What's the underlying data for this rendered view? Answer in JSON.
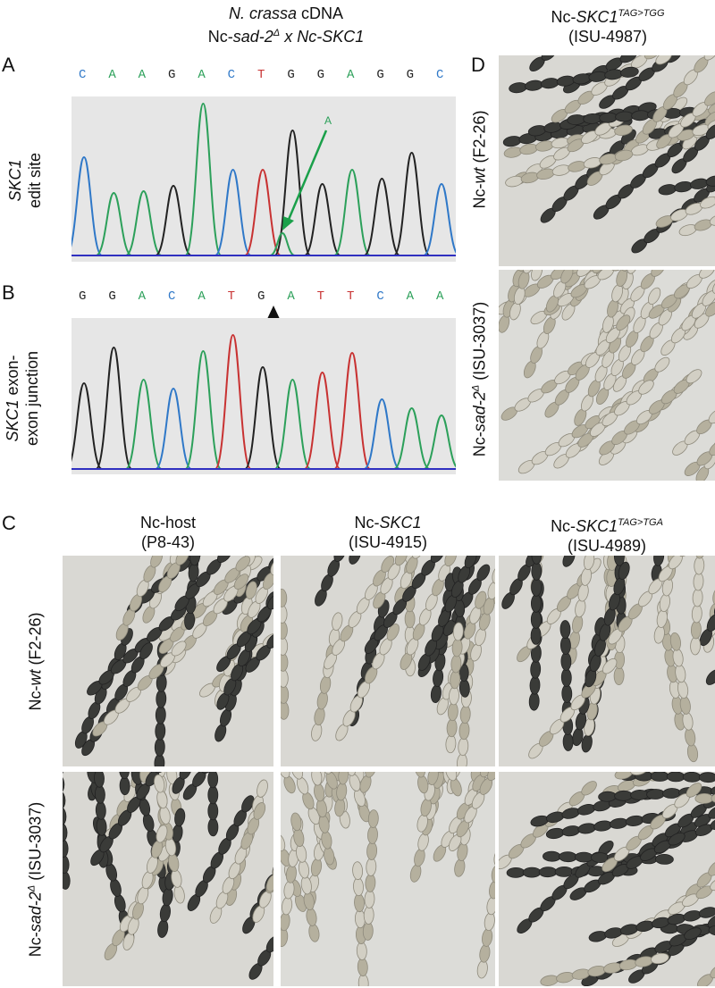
{
  "header": {
    "left_line1_italic": "N. crassa",
    "left_line1_rest": " cDNA",
    "left_line2_a": "Nc-",
    "left_line2_b": "sad-2",
    "left_line2_sup": "Δ",
    "left_line2_c": " x Nc-",
    "left_line2_d": "SKC1",
    "right_line1_a": "Nc-",
    "right_line1_b": "SKC1",
    "right_line1_sup": "TAG>TGG",
    "right_line2": "(ISU-4987)"
  },
  "panel_labels": {
    "a": "A",
    "b": "B",
    "c": "C",
    "d": "D"
  },
  "panel_a": {
    "row_label_1": "SKC1",
    "row_label_2": "edit site",
    "sequence": [
      "C",
      "A",
      "A",
      "G",
      "A",
      "C",
      "T",
      "G",
      "G",
      "A",
      "G",
      "G",
      "C"
    ],
    "annotation": "A"
  },
  "panel_b": {
    "row_label_1_italic": "SKC1",
    "row_label_1_rest": " exon-",
    "row_label_2": "exon junction",
    "sequence": [
      "G",
      "G",
      "A",
      "C",
      "A",
      "T",
      "G",
      "A",
      "T",
      "T",
      "C",
      "A",
      "A"
    ]
  },
  "panel_c": {
    "col1_line1": "Nc-host",
    "col1_line2": "(P8-43)",
    "col2_line1_a": "Nc-",
    "col2_line1_b": "SKC1",
    "col2_line2": "(ISU-4915)",
    "col3_line1_a": "Nc-",
    "col3_line1_b": "SKC1",
    "col3_line1_sup": "TAG>TGA",
    "col3_line2": "(ISU-4989)",
    "row1_a": "Nc-",
    "row1_b": "wt",
    "row1_c": " (F2-26)",
    "row2_a": "Nc-",
    "row2_b": "sad-2",
    "row2_sup": "Δ",
    "row2_c": " (ISU-3037)"
  },
  "panel_d": {
    "row1_a": "Nc-",
    "row1_b": "wt",
    "row1_c": " (F2-26)",
    "row2_a": "Nc-",
    "row2_b": "sad-2",
    "row2_sup": "Δ",
    "row2_c": " (ISU-3037)"
  },
  "colors": {
    "A": "#2ca05a",
    "C": "#2f78c8",
    "G": "#222222",
    "T": "#c83232",
    "arrow_green": "#1aa04a"
  }
}
